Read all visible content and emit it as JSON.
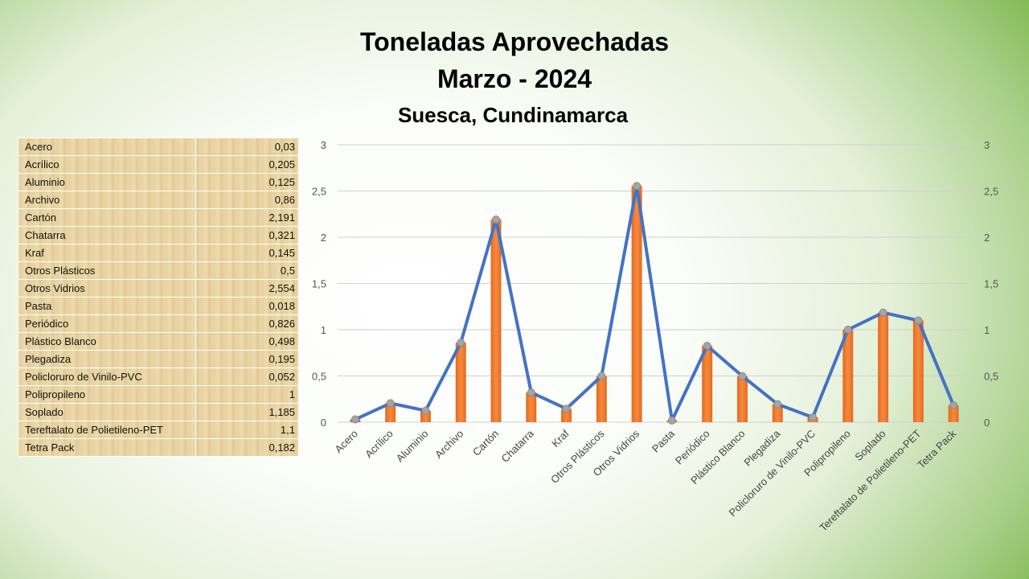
{
  "title_line1": "Toneladas Aprovechadas",
  "title_line2": "Marzo - 2024",
  "subtitle": "Suesca, Cundinamarca",
  "table": [
    [
      "Acero",
      "0,03"
    ],
    [
      "Acrílico",
      "0,205"
    ],
    [
      "Aluminio",
      "0,125"
    ],
    [
      "Archivo",
      "0,86"
    ],
    [
      "Cartón",
      "2,191"
    ],
    [
      "Chatarra",
      "0,321"
    ],
    [
      "Kraf",
      "0,145"
    ],
    [
      "Otros Plásticos",
      "0,5"
    ],
    [
      "Otros Vidrios",
      "2,554"
    ],
    [
      "Pasta",
      "0,018"
    ],
    [
      "Periódico",
      "0,826"
    ],
    [
      "Plástico Blanco",
      "0,498"
    ],
    [
      "Plegadiza",
      "0,195"
    ],
    [
      "Policloruro de Vinilo-PVC",
      "0,052"
    ],
    [
      "Polipropileno",
      "1"
    ],
    [
      "Soplado",
      "1,185"
    ],
    [
      "Tereftalato de Polietileno-PET",
      "1,1"
    ],
    [
      "Tetra Pack",
      "0,182"
    ]
  ],
  "chart_data": {
    "type": "bar+line",
    "categories": [
      "Acero",
      "Acrílico",
      "Aluminio",
      "Archivo",
      "Cartón",
      "Chatarra",
      "Kraf",
      "Otros Plásticos",
      "Otros Vidrios",
      "Pasta",
      "Periódico",
      "Plástico Blanco",
      "Plegadiza",
      "Policloruro de Vinilo-PVC",
      "Polipropileno",
      "Soplado",
      "Tereftalato de Polietileno-PET",
      "Tetra Pack"
    ],
    "series": [
      {
        "name": "bars",
        "type": "bar",
        "color": "#ED7D31",
        "values": [
          0.03,
          0.205,
          0.125,
          0.86,
          2.191,
          0.321,
          0.145,
          0.5,
          2.554,
          0.018,
          0.826,
          0.498,
          0.195,
          0.052,
          1,
          1.185,
          1.1,
          0.182
        ]
      },
      {
        "name": "line",
        "type": "line",
        "color": "#4472C4",
        "values": [
          0.03,
          0.205,
          0.125,
          0.86,
          2.191,
          0.321,
          0.145,
          0.5,
          2.554,
          0.018,
          0.826,
          0.498,
          0.195,
          0.052,
          1,
          1.185,
          1.1,
          0.182
        ]
      }
    ],
    "ylim": [
      0,
      3
    ],
    "yticks": [
      "0",
      "0,5",
      "1",
      "1,5",
      "2",
      "2,5",
      "3"
    ],
    "yticks_right": [
      "0",
      "0,5",
      "1",
      "1,5",
      "2",
      "2,5",
      "3"
    ],
    "grid": true
  }
}
